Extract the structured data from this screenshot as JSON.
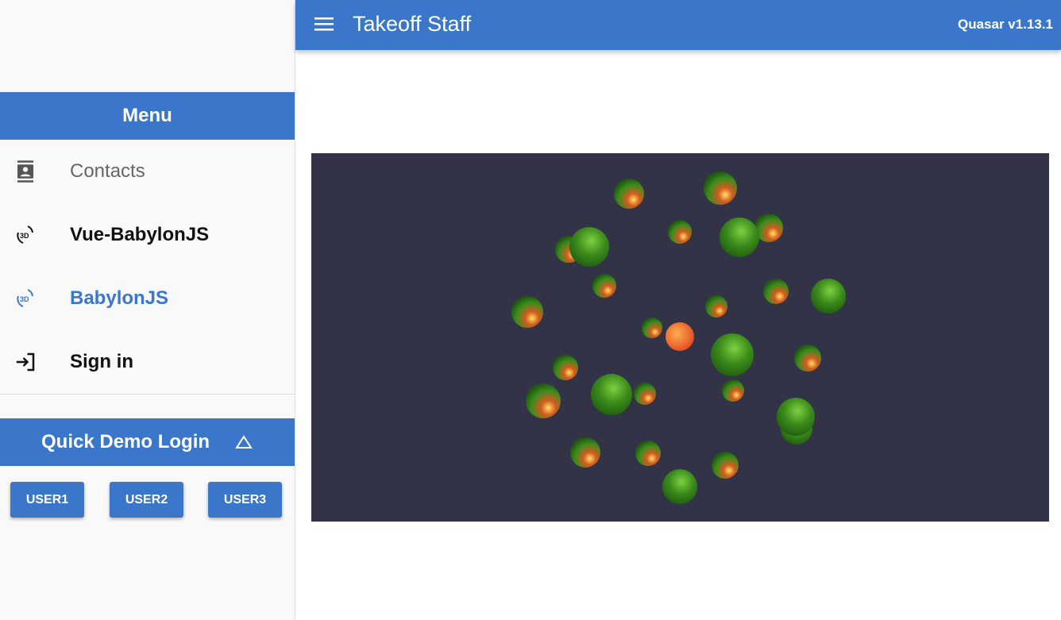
{
  "header": {
    "title": "Takeoff Staff",
    "version": "Quasar v1.13.1"
  },
  "sidebar": {
    "menu_title": "Menu",
    "items": [
      {
        "label": "Contacts",
        "icon": "contact-icon",
        "color": "#666666"
      },
      {
        "label": "Vue-BabylonJS",
        "icon": "3d-rotation-icon",
        "color": "#111111"
      },
      {
        "label": "BabylonJS",
        "icon": "3d-rotation-icon",
        "color": "#3a76c9",
        "active": true
      },
      {
        "label": "Sign in",
        "icon": "login-icon",
        "color": "#111111"
      }
    ],
    "quick_demo": {
      "title": "Quick Demo Login",
      "buttons": [
        "USER1",
        "USER2",
        "USER3"
      ]
    }
  },
  "colors": {
    "primary": "#3a76c9",
    "canvas": "#333348"
  }
}
